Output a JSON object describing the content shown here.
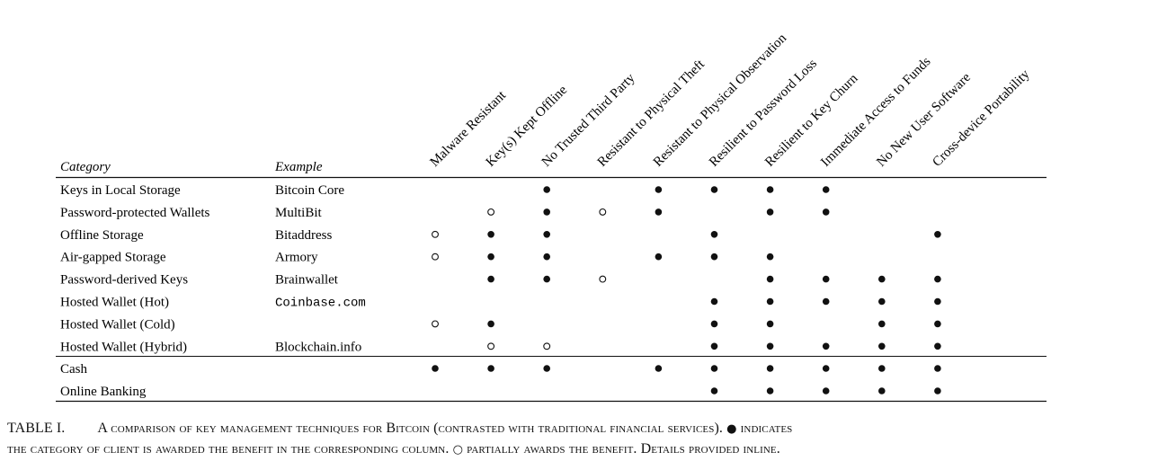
{
  "table": {
    "header": {
      "category": "Category",
      "example": "Example"
    },
    "columns": [
      "Malware Resistant",
      "Key(s) Kept Offline",
      "No Trusted Third Party",
      "Resistant to Physical Theft",
      "Resistant to Physical Observation",
      "Resilient to Password Loss",
      "Resilient to Key Churn",
      "Immediate Access to Funds",
      "No New User Software",
      "Cross-device Portability"
    ],
    "rows": [
      {
        "category": "Keys in Local Storage",
        "example": "Bitcoin Core",
        "mono": false,
        "marks": [
          "",
          "",
          "full",
          "",
          "full",
          "full",
          "full",
          "full",
          "",
          ""
        ]
      },
      {
        "category": "Password-protected Wallets",
        "example": "MultiBit",
        "mono": false,
        "marks": [
          "",
          "partial",
          "full",
          "partial",
          "full",
          "",
          "full",
          "full",
          "",
          ""
        ]
      },
      {
        "category": "Offline Storage",
        "example": "Bitaddress",
        "mono": false,
        "marks": [
          "partial",
          "full",
          "full",
          "",
          "",
          "full",
          "",
          "",
          "",
          "full"
        ]
      },
      {
        "category": "Air-gapped Storage",
        "example": "Armory",
        "mono": false,
        "marks": [
          "partial",
          "full",
          "full",
          "",
          "full",
          "full",
          "full",
          "",
          "",
          ""
        ]
      },
      {
        "category": "Password-derived Keys",
        "example": "Brainwallet",
        "mono": false,
        "marks": [
          "",
          "full",
          "full",
          "partial",
          "",
          "",
          "full",
          "full",
          "full",
          "full"
        ]
      },
      {
        "category": "Hosted Wallet (Hot)",
        "example": "Coinbase.com",
        "mono": true,
        "marks": [
          "",
          "",
          "",
          "",
          "",
          "full",
          "full",
          "full",
          "full",
          "full"
        ]
      },
      {
        "category": "Hosted Wallet (Cold)",
        "example": "",
        "mono": false,
        "marks": [
          "partial",
          "full",
          "",
          "",
          "",
          "full",
          "full",
          "",
          "full",
          "full"
        ]
      },
      {
        "category": "Hosted Wallet (Hybrid)",
        "example": "Blockchain.info",
        "mono": false,
        "marks": [
          "",
          "partial",
          "partial",
          "",
          "",
          "full",
          "full",
          "full",
          "full",
          "full"
        ]
      },
      {
        "category": "Cash",
        "example": "",
        "mono": false,
        "marks": [
          "full",
          "full",
          "full",
          "",
          "full",
          "full",
          "full",
          "full",
          "full",
          "full"
        ]
      },
      {
        "category": "Online Banking",
        "example": "",
        "mono": false,
        "marks": [
          "",
          "",
          "",
          "",
          "",
          "full",
          "full",
          "full",
          "full",
          "full"
        ]
      }
    ]
  },
  "caption": {
    "label": "TABLE I.",
    "part1": "A comparison of key management techniques for Bitcoin (contrasted with traditional financial services).",
    "full_symbol": "●",
    "part2": "indicates",
    "part3": "the category of client is awarded the benefit in the corresponding column.",
    "partial_symbol": "○",
    "part4": "partially awards the benefit. Details provided inline."
  }
}
